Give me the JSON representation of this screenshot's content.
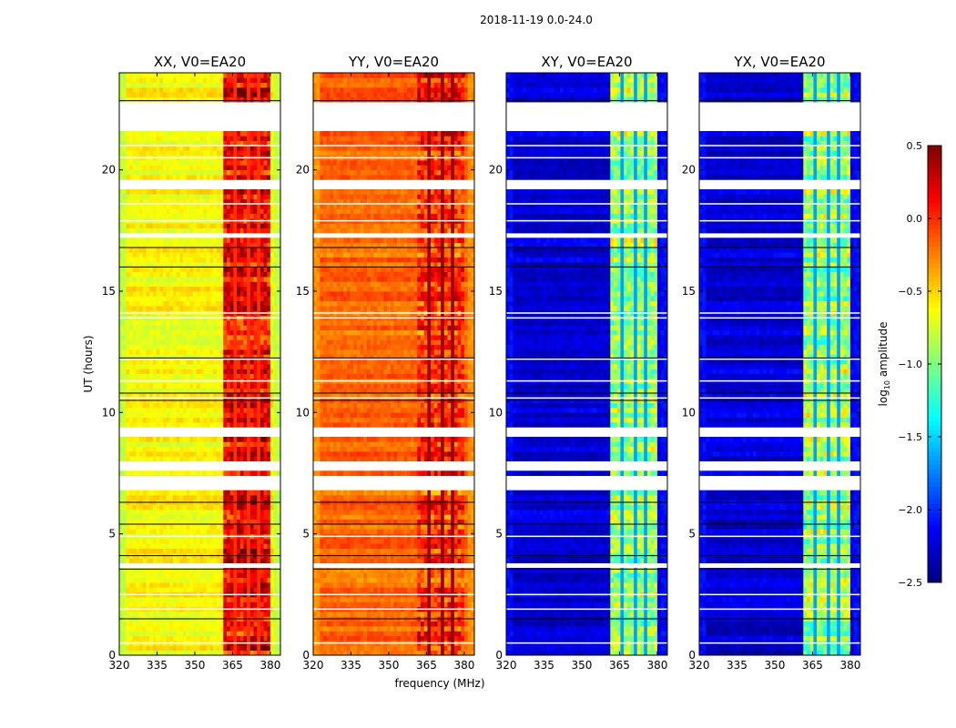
{
  "chart_data": {
    "type": "heatmap",
    "suptitle": "2018-11-19 0.0-24.0",
    "xlabel": "frequency (MHz)",
    "ylabel": "UT (hours)",
    "xlim": [
      320,
      384
    ],
    "ylim": [
      0,
      24
    ],
    "xticks": [
      320,
      335,
      350,
      365,
      380
    ],
    "yticks": [
      0,
      5,
      10,
      15,
      20
    ],
    "band_mhz": [
      362,
      380.5
    ],
    "band_gaps_mhz": [
      366.2,
      370.8,
      375.5
    ],
    "flagged_hours": [
      [
        21.55,
        22.85
      ],
      [
        23.15,
        23.25
      ],
      [
        23.35,
        23.45
      ],
      [
        19.3,
        19.55
      ],
      [
        17.2,
        17.4
      ],
      [
        9.1,
        9.4
      ],
      [
        7.7,
        8.0
      ],
      [
        6.75,
        7.3
      ],
      [
        15.35,
        15.45
      ],
      [
        3.6,
        3.75
      ]
    ],
    "thin_flag_lines_hours": [
      21.0,
      20.5,
      18.6,
      17.9,
      14.1,
      13.9,
      12.2,
      11.3,
      10.6,
      4.9,
      2.5,
      1.9,
      0.5
    ],
    "black_lines_hours": [
      22.85,
      16.8,
      16.0,
      12.25,
      10.8,
      10.5,
      6.3,
      5.4,
      4.1,
      3.55,
      1.5
    ],
    "panels": [
      {
        "title": "XX, V0=EA20",
        "base": -0.62,
        "band": 0.15,
        "edge": -0.8
      },
      {
        "title": "YY, V0=EA20",
        "base": -0.18,
        "band": -0.02,
        "edge": -0.3
      },
      {
        "title": "XY, V0=EA20",
        "base": -2.25,
        "band": -0.9,
        "edge": -2.1
      },
      {
        "title": "YX, V0=EA20",
        "base": -2.25,
        "band": -0.9,
        "edge": -2.1
      }
    ],
    "colorbar": {
      "label": "log10 amplitude",
      "label_main": "log",
      "label_sub": "10",
      "label_rest": " amplitude",
      "colormap": "jet",
      "range": [
        -2.5,
        0.5
      ],
      "ticks": [
        "0.5",
        "0.0",
        "−0.5",
        "−1.0",
        "−1.5",
        "−2.0",
        "−2.5"
      ]
    }
  }
}
